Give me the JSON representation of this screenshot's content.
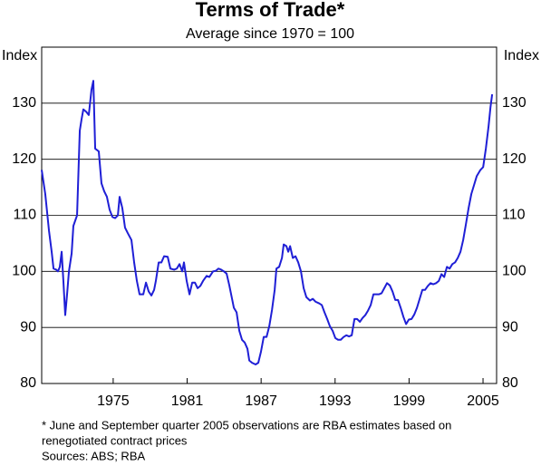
{
  "chart_data": {
    "type": "line",
    "title": "Terms of Trade*",
    "subtitle": "Average since 1970 = 100",
    "y_axis_label": "Index",
    "y2_axis_label": "Index",
    "notes": [
      "*   June and September quarter 2005 observations are RBA estimates based on",
      "renegotiated contract prices"
    ],
    "source": "Sources: ABS; RBA",
    "xlim": [
      1969.2,
      2006.1
    ],
    "xticks": [
      1975,
      1981,
      1987,
      1993,
      1999,
      2005
    ],
    "ylim": [
      80,
      140
    ],
    "yticks": [
      80,
      90,
      100,
      110,
      120,
      130
    ],
    "grid": true,
    "x": [
      1969.2,
      1969.49,
      1969.79,
      1970.01,
      1970.16,
      1970.38,
      1970.52,
      1970.67,
      1970.82,
      1970.96,
      1971.11,
      1971.26,
      1971.41,
      1971.63,
      1971.77,
      1972.07,
      1972.29,
      1972.44,
      1972.58,
      1972.8,
      1973.02,
      1973.24,
      1973.39,
      1973.54,
      1973.83,
      1974.05,
      1974.27,
      1974.49,
      1974.71,
      1974.94,
      1975.16,
      1975.38,
      1975.52,
      1975.74,
      1975.96,
      1976.19,
      1976.48,
      1976.7,
      1976.92,
      1977.14,
      1977.44,
      1977.66,
      1977.88,
      1978.1,
      1978.32,
      1978.46,
      1978.69,
      1978.91,
      1979.13,
      1979.42,
      1979.64,
      1979.94,
      1980.16,
      1980.38,
      1980.6,
      1980.74,
      1980.96,
      1981.19,
      1981.41,
      1981.63,
      1981.85,
      1982.07,
      1982.29,
      1982.58,
      1982.8,
      1983.1,
      1983.32,
      1983.54,
      1983.76,
      1983.98,
      1984.2,
      1984.42,
      1984.79,
      1985.01,
      1985.23,
      1985.45,
      1985.67,
      1985.89,
      1986.04,
      1986.26,
      1986.55,
      1986.77,
      1986.99,
      1987.21,
      1987.44,
      1987.66,
      1987.88,
      1988.1,
      1988.24,
      1988.46,
      1988.69,
      1988.83,
      1989.05,
      1989.2,
      1989.35,
      1989.57,
      1989.79,
      1990.01,
      1990.23,
      1990.45,
      1990.67,
      1990.96,
      1991.19,
      1991.41,
      1991.7,
      1991.92,
      1992.14,
      1992.36,
      1992.58,
      1992.8,
      1993.02,
      1993.24,
      1993.46,
      1993.69,
      1993.91,
      1994.13,
      1994.35,
      1994.57,
      1994.79,
      1995.01,
      1995.23,
      1995.45,
      1995.67,
      1995.89,
      1996.11,
      1996.33,
      1996.55,
      1996.77,
      1996.99,
      1997.21,
      1997.44,
      1997.66,
      1997.88,
      1998.1,
      1998.32,
      1998.54,
      1998.76,
      1998.98,
      1999.2,
      1999.42,
      1999.64,
      1999.86,
      2000.08,
      2000.3,
      2000.52,
      2000.74,
      2000.96,
      2001.19,
      2001.41,
      2001.63,
      2001.85,
      2002.07,
      2002.29,
      2002.51,
      2002.73,
      2002.95,
      2003.17,
      2003.39,
      2003.61,
      2003.83,
      2004.05,
      2004.27,
      2004.49,
      2004.79,
      2005.01,
      2005.23,
      2005.45,
      2005.6,
      2005.74
    ],
    "series": [
      {
        "name": "Terms of Trade",
        "color": "#1f1fd6",
        "values": [
          118.1,
          113.8,
          107.3,
          103.5,
          100.5,
          100.3,
          100,
          100.8,
          103.5,
          98.3,
          92.2,
          95.9,
          100,
          103.2,
          108.1,
          110,
          125.1,
          127.2,
          128.9,
          128.5,
          127.9,
          132.4,
          134,
          121.9,
          121.4,
          115.7,
          114.3,
          113.3,
          111,
          109.7,
          109.5,
          110,
          113.3,
          111.3,
          107.8,
          106.8,
          105.6,
          101.6,
          98.3,
          95.9,
          95.9,
          98,
          96.4,
          95.7,
          96.7,
          98.3,
          101.6,
          101.6,
          102.7,
          102.6,
          100.5,
          100.3,
          100.5,
          101.3,
          100,
          101.6,
          98.3,
          95.9,
          98,
          98,
          97,
          97.4,
          98.3,
          99.2,
          99,
          100,
          100.1,
          100.5,
          100.3,
          100,
          99.6,
          97.5,
          93.5,
          92.7,
          89.4,
          87.8,
          87.3,
          86.2,
          84.1,
          83.7,
          83.4,
          83.7,
          85.7,
          88.3,
          88.3,
          90.2,
          93.1,
          96.7,
          100.5,
          100.8,
          102.4,
          104.8,
          104.5,
          103.5,
          104.5,
          102.4,
          102.7,
          101.6,
          100,
          97,
          95.4,
          94.8,
          95.1,
          94.6,
          94.3,
          94,
          92.7,
          91.5,
          90.2,
          89.4,
          88.1,
          87.8,
          87.8,
          88.3,
          88.6,
          88.4,
          88.6,
          91.5,
          91.5,
          91,
          91.7,
          92.2,
          93,
          94,
          95.9,
          95.9,
          95.9,
          96.1,
          97,
          97.9,
          97.5,
          96.4,
          94.9,
          94.9,
          93.5,
          91.9,
          90.6,
          91.4,
          91.5,
          92.3,
          93.5,
          95.1,
          96.7,
          96.7,
          97.4,
          97.9,
          97.7,
          97.9,
          98.3,
          99.5,
          99,
          100.8,
          100.5,
          101.3,
          101.6,
          102.4,
          103.5,
          105.6,
          108.4,
          111.3,
          113.8,
          115.4,
          117,
          118.1,
          118.6,
          121.9,
          125.9,
          129.2,
          131.6
        ]
      }
    ]
  }
}
